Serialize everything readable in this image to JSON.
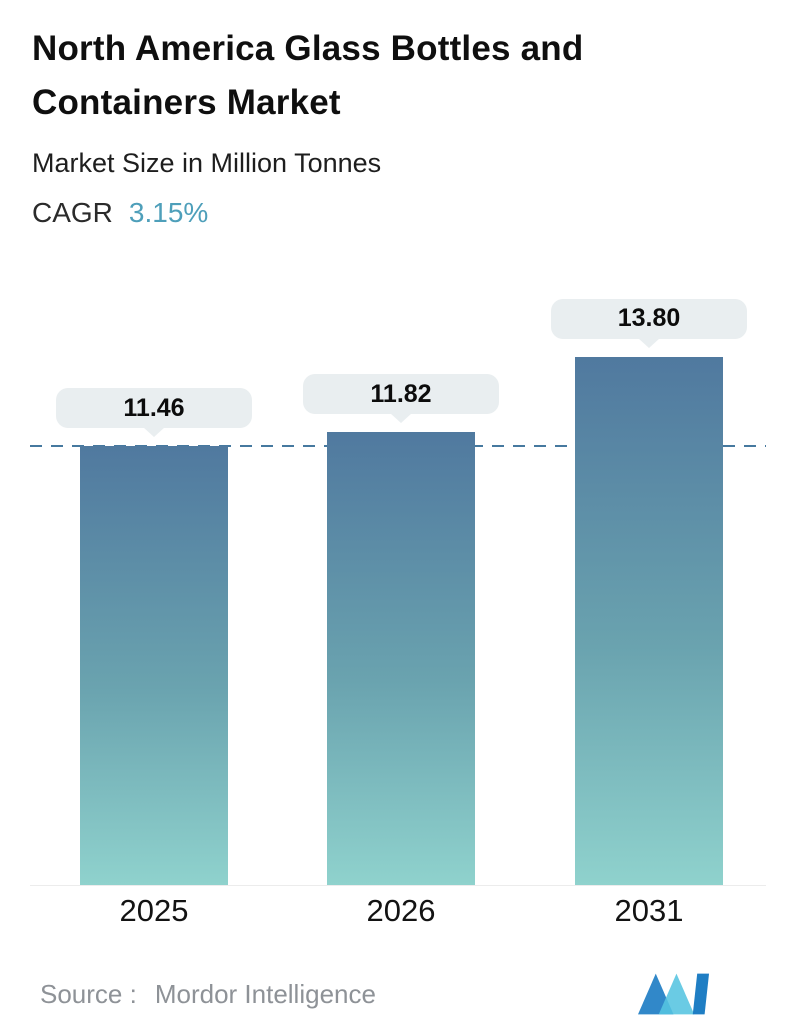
{
  "header": {
    "title_line1": "North America Glass Bottles and",
    "title_line2": "Containers Market",
    "subtitle": "Market Size in Million Tonnes",
    "cagr_label": "CAGR",
    "cagr_value": "3.15%"
  },
  "chart_data": {
    "type": "bar",
    "title": "North America Glass Bottles and Containers Market",
    "subtitle": "Market Size in Million Tonnes",
    "cagr": "3.15%",
    "categories": [
      "2025",
      "2026",
      "2031"
    ],
    "values": [
      11.46,
      11.82,
      13.8
    ],
    "value_labels": [
      "11.46",
      "11.82",
      "13.80"
    ],
    "ylabel": "Market Size in Million Tonnes",
    "ylim": [
      0,
      15.75
    ],
    "reference_line_value": 11.46,
    "grid": "off",
    "legend": "none",
    "bar_gradient_top": "#50799f",
    "bar_gradient_bottom": "#8fd2cd",
    "reference_line_color": "#46799f",
    "callout_background": "#e9eef0",
    "accent_color": "#4e9fba"
  },
  "footer": {
    "source_label": "Source :",
    "source_value": "Mordor Intelligence",
    "logo": "mordor-intelligence-logo"
  }
}
